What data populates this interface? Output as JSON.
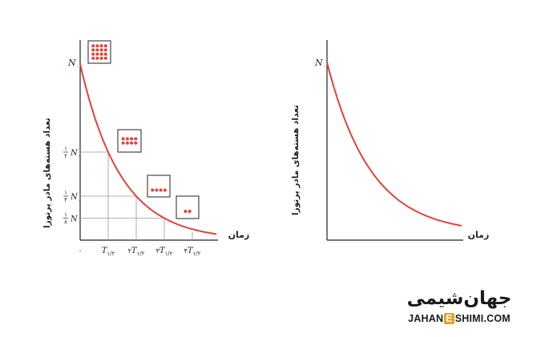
{
  "left_graph": {
    "y_label": "تعداد هسته‌های مادر پرتوزا",
    "x_label": "زمان",
    "n0_label": "N",
    "n0_sub": "۰",
    "origin_label": "۰",
    "ticks": [
      {
        "n": "",
        "t": "T",
        "sub": "۱/۲",
        "frac_num": "۱",
        "frac_den": "۲",
        "value": 0.5,
        "dots": 6
      },
      {
        "n": "۲",
        "t": "T",
        "sub": "۱/۲",
        "frac_num": "۱",
        "frac_den": "۴",
        "value": 0.25,
        "dots": 4
      },
      {
        "n": "۳",
        "t": "T",
        "sub": "۱/۲",
        "frac_num": "۱",
        "frac_den": "۸",
        "value": 0.125,
        "dots": 2
      },
      {
        "n": "۴",
        "t": "T",
        "sub": "۱/۲",
        "value": 0.0625
      }
    ],
    "initial_dots": 12
  },
  "right_graph": {
    "y_label": "تعداد هسته‌های مادر پرتوزا",
    "x_label": "زمان",
    "n0_label": "N",
    "n0_sub": "۰"
  },
  "logo": {
    "persian": "جهان‌شیمی",
    "english_part1": "JAHAN",
    "english_e": "E",
    "english_part2": "SHIMI.COM",
    "accent_color": "#e8a11a"
  },
  "colors": {
    "curve": "#e0443a",
    "dot": "#e0443a",
    "axis": "#222222",
    "grid": "#9a9a9a"
  }
}
